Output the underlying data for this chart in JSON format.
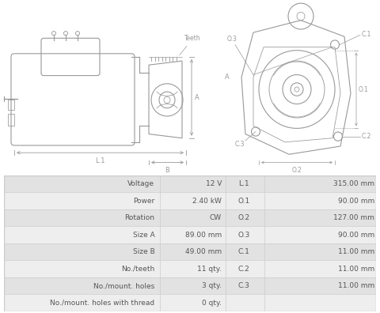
{
  "table": {
    "left_labels": [
      "Voltage",
      "Power",
      "Rotation",
      "Size A",
      "Size B",
      "No./teeth",
      "No./mount. holes",
      "No./mount. holes with thread"
    ],
    "left_values": [
      "12 V",
      "2.40 kW",
      "CW",
      "89.00 mm",
      "49.00 mm",
      "11 qty.",
      "3 qty.",
      "0 qty."
    ],
    "right_labels": [
      "L.1",
      "O.1",
      "O.2",
      "O.3",
      "C.1",
      "C.2",
      "C.3",
      ""
    ],
    "right_values": [
      "315.00 mm",
      "90.00 mm",
      "127.00 mm",
      "90.00 mm",
      "11.00 mm",
      "11.00 mm",
      "11.00 mm",
      ""
    ]
  },
  "bg_color": "#ffffff",
  "table_bg_odd": "#e2e2e2",
  "table_bg_even": "#eeeeee",
  "table_border": "#cccccc",
  "text_color": "#555555",
  "diagram_color": "#999999",
  "diagram_lw": 0.8
}
